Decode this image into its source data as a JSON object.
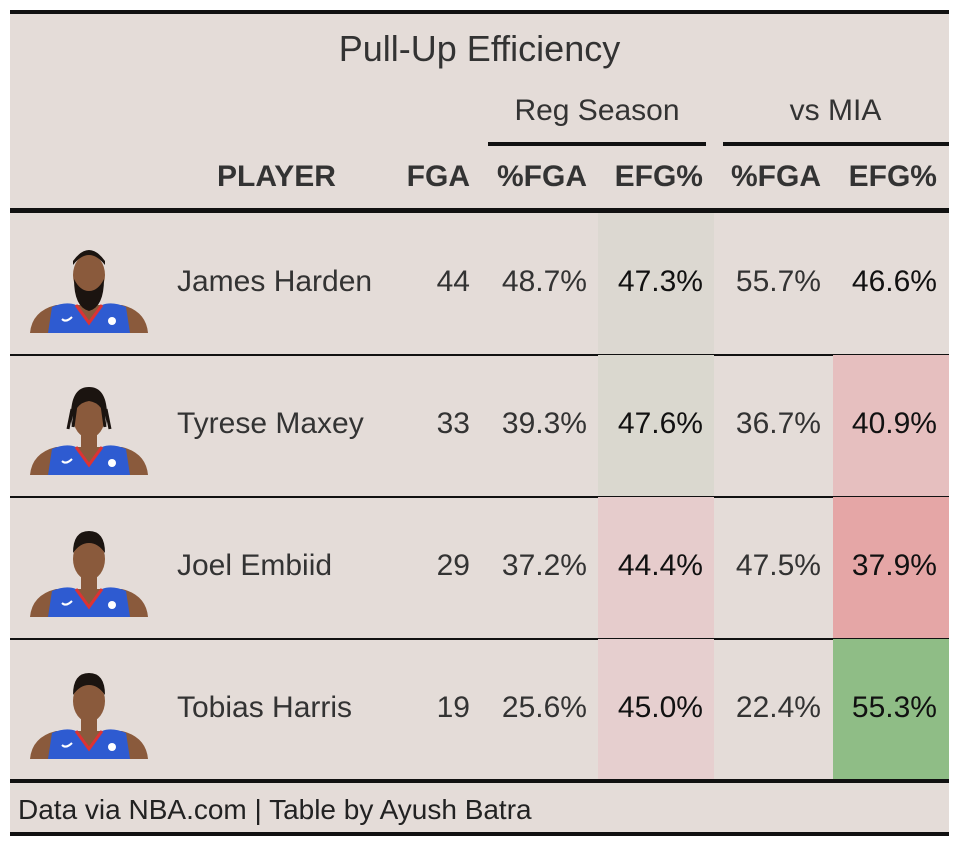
{
  "chart_data": {
    "type": "table",
    "title": "Pull-Up Efficiency",
    "column_groups": [
      {
        "label": "Reg Season",
        "columns": [
          "%FGA",
          "EFG%"
        ]
      },
      {
        "label": "vs MIA",
        "columns": [
          "%FGA",
          "EFG%"
        ]
      }
    ],
    "columns": [
      "PLAYER",
      "FGA",
      "%FGA",
      "EFG%",
      "%FGA",
      "EFG%"
    ],
    "rows": [
      {
        "player": "James Harden",
        "fga": "44",
        "reg_pct_fga": "48.7%",
        "reg_efg": "47.3%",
        "mia_pct_fga": "55.7%",
        "mia_efg": "46.6%",
        "reg_efg_color": "#dcd8d1",
        "mia_efg_color": "#e4dcd8"
      },
      {
        "player": "Tyrese Maxey",
        "fga": "33",
        "reg_pct_fga": "39.3%",
        "reg_efg": "47.6%",
        "mia_pct_fga": "36.7%",
        "mia_efg": "40.9%",
        "reg_efg_color": "#dad8cf",
        "mia_efg_color": "#e6bfbf"
      },
      {
        "player": "Joel Embiid",
        "fga": "29",
        "reg_pct_fga": "37.2%",
        "reg_efg": "44.4%",
        "mia_pct_fga": "47.5%",
        "mia_efg": "37.9%",
        "reg_efg_color": "#e6cccc",
        "mia_efg_color": "#e5a6a6"
      },
      {
        "player": "Tobias Harris",
        "fga": "19",
        "reg_pct_fga": "25.6%",
        "reg_efg": "45.0%",
        "mia_pct_fga": "22.4%",
        "mia_efg": "55.3%",
        "reg_efg_color": "#e6cfcf",
        "mia_efg_color": "#8fbd86"
      }
    ],
    "footer": "Data via NBA.com | Table by Ayush Batra"
  },
  "colors": {
    "background": "#e4dcd8",
    "rule": "#111111",
    "jersey": "#2e5bd1",
    "skin": "#8a5a3c"
  }
}
